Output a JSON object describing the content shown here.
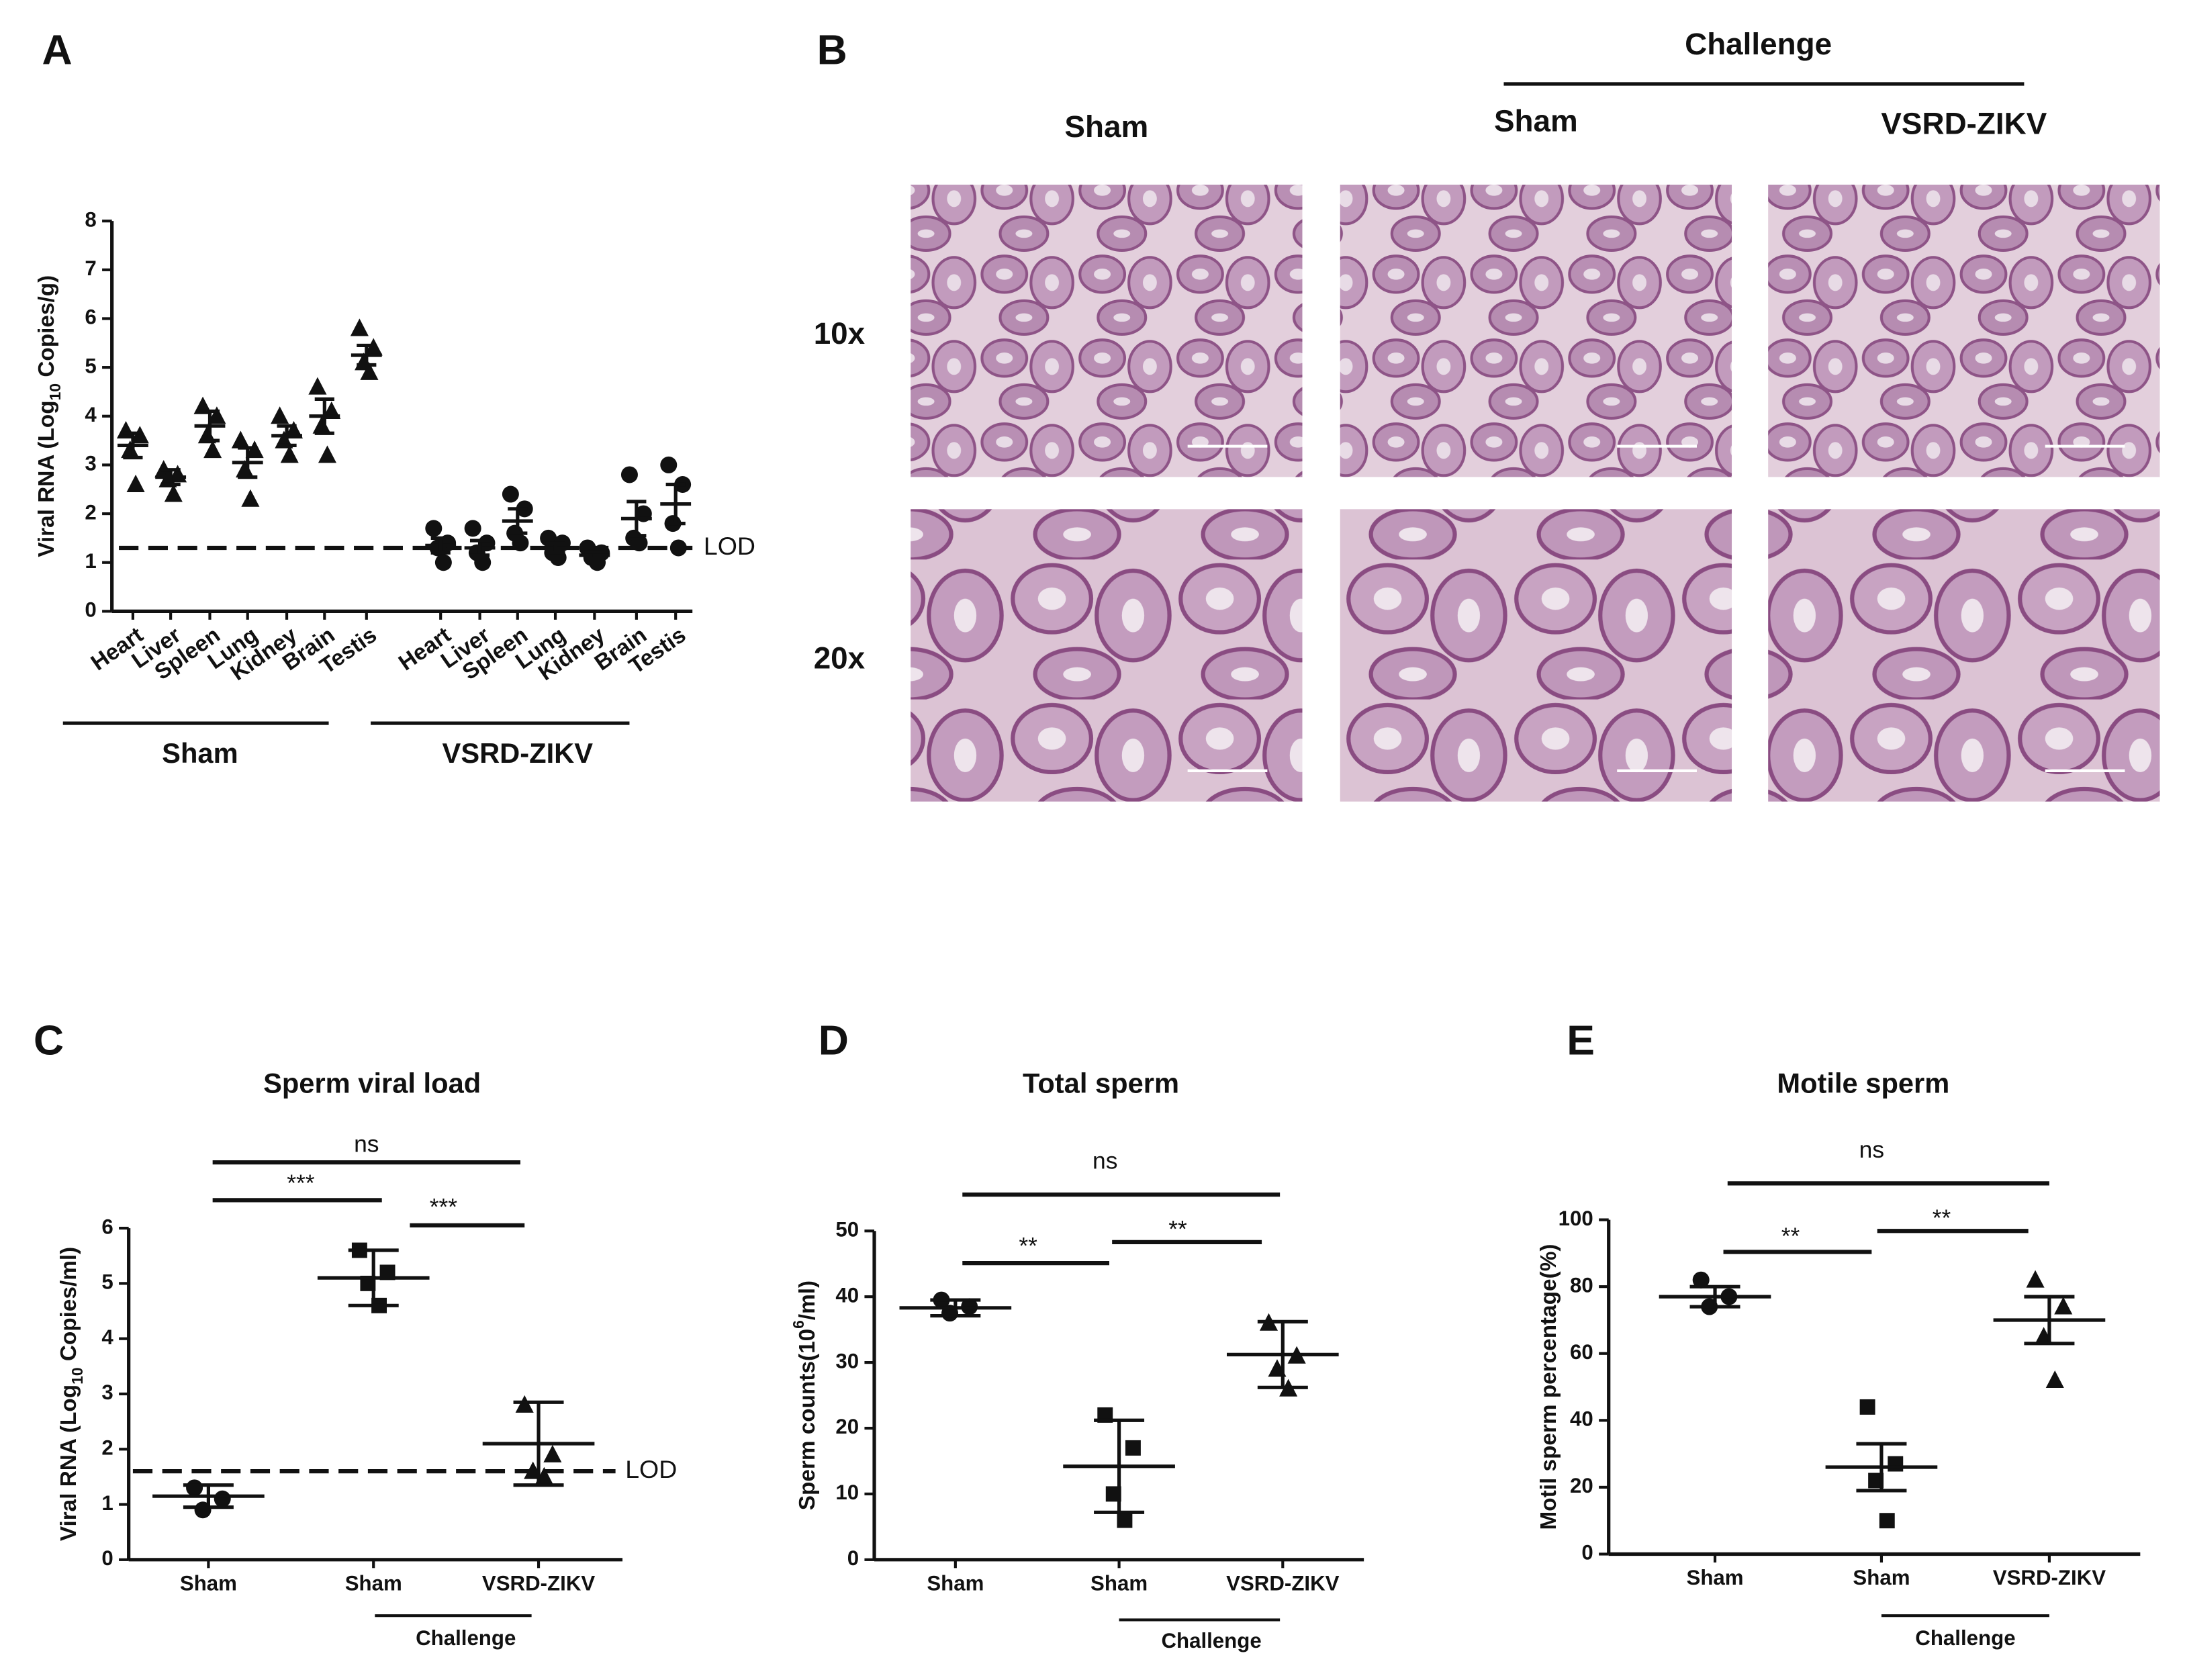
{
  "histology": {
    "label": "B",
    "challenge": "Challenge",
    "columns": [
      "Sham",
      "Sham",
      "VSRD-ZIKV"
    ],
    "rows": [
      "10x",
      "20x"
    ]
  },
  "chart_data": [
    {
      "type": "scatter",
      "label": "A",
      "ylabel": [
        "Viral RNA (Log",
        "10",
        " Copies/g)"
      ],
      "ylabel_script": "sub",
      "ylim": [
        0,
        8
      ],
      "yticks": [
        0,
        1,
        2,
        3,
        4,
        5,
        6,
        7,
        8
      ],
      "lod": 1.3,
      "lod_label": "LOD",
      "color": "#111111",
      "groups": [
        {
          "name": "Sham",
          "marker": "triangle",
          "categories": [
            "Heart",
            "Liver",
            "Spleen",
            "Lung",
            "Kidney",
            "Brain",
            "Testis"
          ],
          "points": [
            [
              3.7,
              3.6,
              3.3,
              2.6
            ],
            [
              2.9,
              2.8,
              2.7,
              2.4
            ],
            [
              4.2,
              4.0,
              3.6,
              3.3
            ],
            [
              3.5,
              3.3,
              2.9,
              2.3
            ],
            [
              4.0,
              3.7,
              3.5,
              3.2
            ],
            [
              4.6,
              4.1,
              3.8,
              3.2
            ],
            [
              5.8,
              5.4,
              5.1,
              4.9
            ]
          ],
          "mean": [
            3.4,
            2.75,
            3.8,
            3.05,
            3.6,
            4.0,
            5.25
          ],
          "sem": [
            0.25,
            0.15,
            0.3,
            0.3,
            0.2,
            0.35,
            0.2
          ]
        },
        {
          "name": "VSRD-ZIKV",
          "marker": "circle",
          "categories": [
            "Heart",
            "Liver",
            "Spleen",
            "Lung",
            "Kidney",
            "Brain",
            "Testis"
          ],
          "points": [
            [
              1.7,
              1.4,
              1.3,
              1.0
            ],
            [
              1.7,
              1.4,
              1.2,
              1.0
            ],
            [
              2.4,
              2.1,
              1.6,
              1.4
            ],
            [
              1.5,
              1.4,
              1.2,
              1.1
            ],
            [
              1.3,
              1.2,
              1.1,
              1.0
            ],
            [
              2.8,
              2.0,
              1.5,
              1.4
            ],
            [
              3.0,
              2.6,
              1.8,
              1.3
            ]
          ],
          "mean": [
            1.35,
            1.3,
            1.85,
            1.3,
            1.15,
            1.9,
            2.2
          ],
          "sem": [
            0.15,
            0.15,
            0.25,
            0.1,
            0.07,
            0.35,
            0.4
          ]
        }
      ]
    },
    {
      "type": "scatter",
      "label": "C",
      "title": "Sperm viral load",
      "ylabel": [
        "Viral RNA (Log",
        "10",
        " Copies/ml)"
      ],
      "ylabel_script": "sub",
      "ylim": [
        0,
        6
      ],
      "yticks": [
        0,
        1,
        2,
        3,
        4,
        5,
        6
      ],
      "lod": 1.6,
      "lod_label": "LOD",
      "color": "#111111",
      "categories": [
        "Sham",
        "Sham",
        "VSRD-ZIKV"
      ],
      "group_label": "Challenge",
      "series": [
        {
          "marker": "circle",
          "points": [
            1.3,
            1.1,
            0.9
          ],
          "mean": 1.15,
          "error": 0.2
        },
        {
          "marker": "square",
          "points": [
            5.6,
            5.2,
            5.0,
            4.6
          ],
          "mean": 5.1,
          "error": 0.5
        },
        {
          "marker": "triangle",
          "points": [
            2.8,
            1.9,
            1.6,
            1.5
          ],
          "mean": 2.1,
          "error": 0.75
        }
      ],
      "significance": [
        "ns",
        "***",
        "***"
      ]
    },
    {
      "type": "scatter",
      "label": "D",
      "title": "Total sperm",
      "ylabel": [
        "Sperm counts(10",
        "6",
        "/ml)"
      ],
      "ylabel_script": "sup",
      "ylim": [
        0,
        50
      ],
      "yticks": [
        0,
        10,
        20,
        30,
        40,
        50
      ],
      "color": "#111111",
      "categories": [
        "Sham",
        "Sham",
        "VSRD-ZIKV"
      ],
      "group_label": "Challenge",
      "series": [
        {
          "marker": "circle",
          "points": [
            39.5,
            38.5,
            37.5
          ],
          "mean": 38.3,
          "error": 1.2
        },
        {
          "marker": "square",
          "points": [
            22,
            17,
            10,
            6
          ],
          "mean": 14.2,
          "error": 7
        },
        {
          "marker": "triangle",
          "points": [
            36,
            31,
            29,
            26
          ],
          "mean": 31.2,
          "error": 5
        }
      ],
      "significance": [
        "ns",
        "**",
        "**"
      ]
    },
    {
      "type": "scatter",
      "label": "E",
      "title": "Motile sperm",
      "ylabel": [
        "Motil sperm percentage(%)"
      ],
      "ylim": [
        0,
        100
      ],
      "yticks": [
        0,
        20,
        40,
        60,
        80,
        100
      ],
      "color": "#111111",
      "categories": [
        "Sham",
        "Sham",
        "VSRD-ZIKV"
      ],
      "group_label": "Challenge",
      "series": [
        {
          "marker": "circle",
          "points": [
            82,
            77,
            74
          ],
          "mean": 77,
          "error": 3
        },
        {
          "marker": "square",
          "points": [
            44,
            27,
            22,
            10
          ],
          "mean": 26,
          "error": 7
        },
        {
          "marker": "triangle",
          "points": [
            82,
            74,
            65,
            52
          ],
          "mean": 70,
          "error": 7
        }
      ],
      "significance": [
        "ns",
        "**",
        "**"
      ]
    }
  ]
}
